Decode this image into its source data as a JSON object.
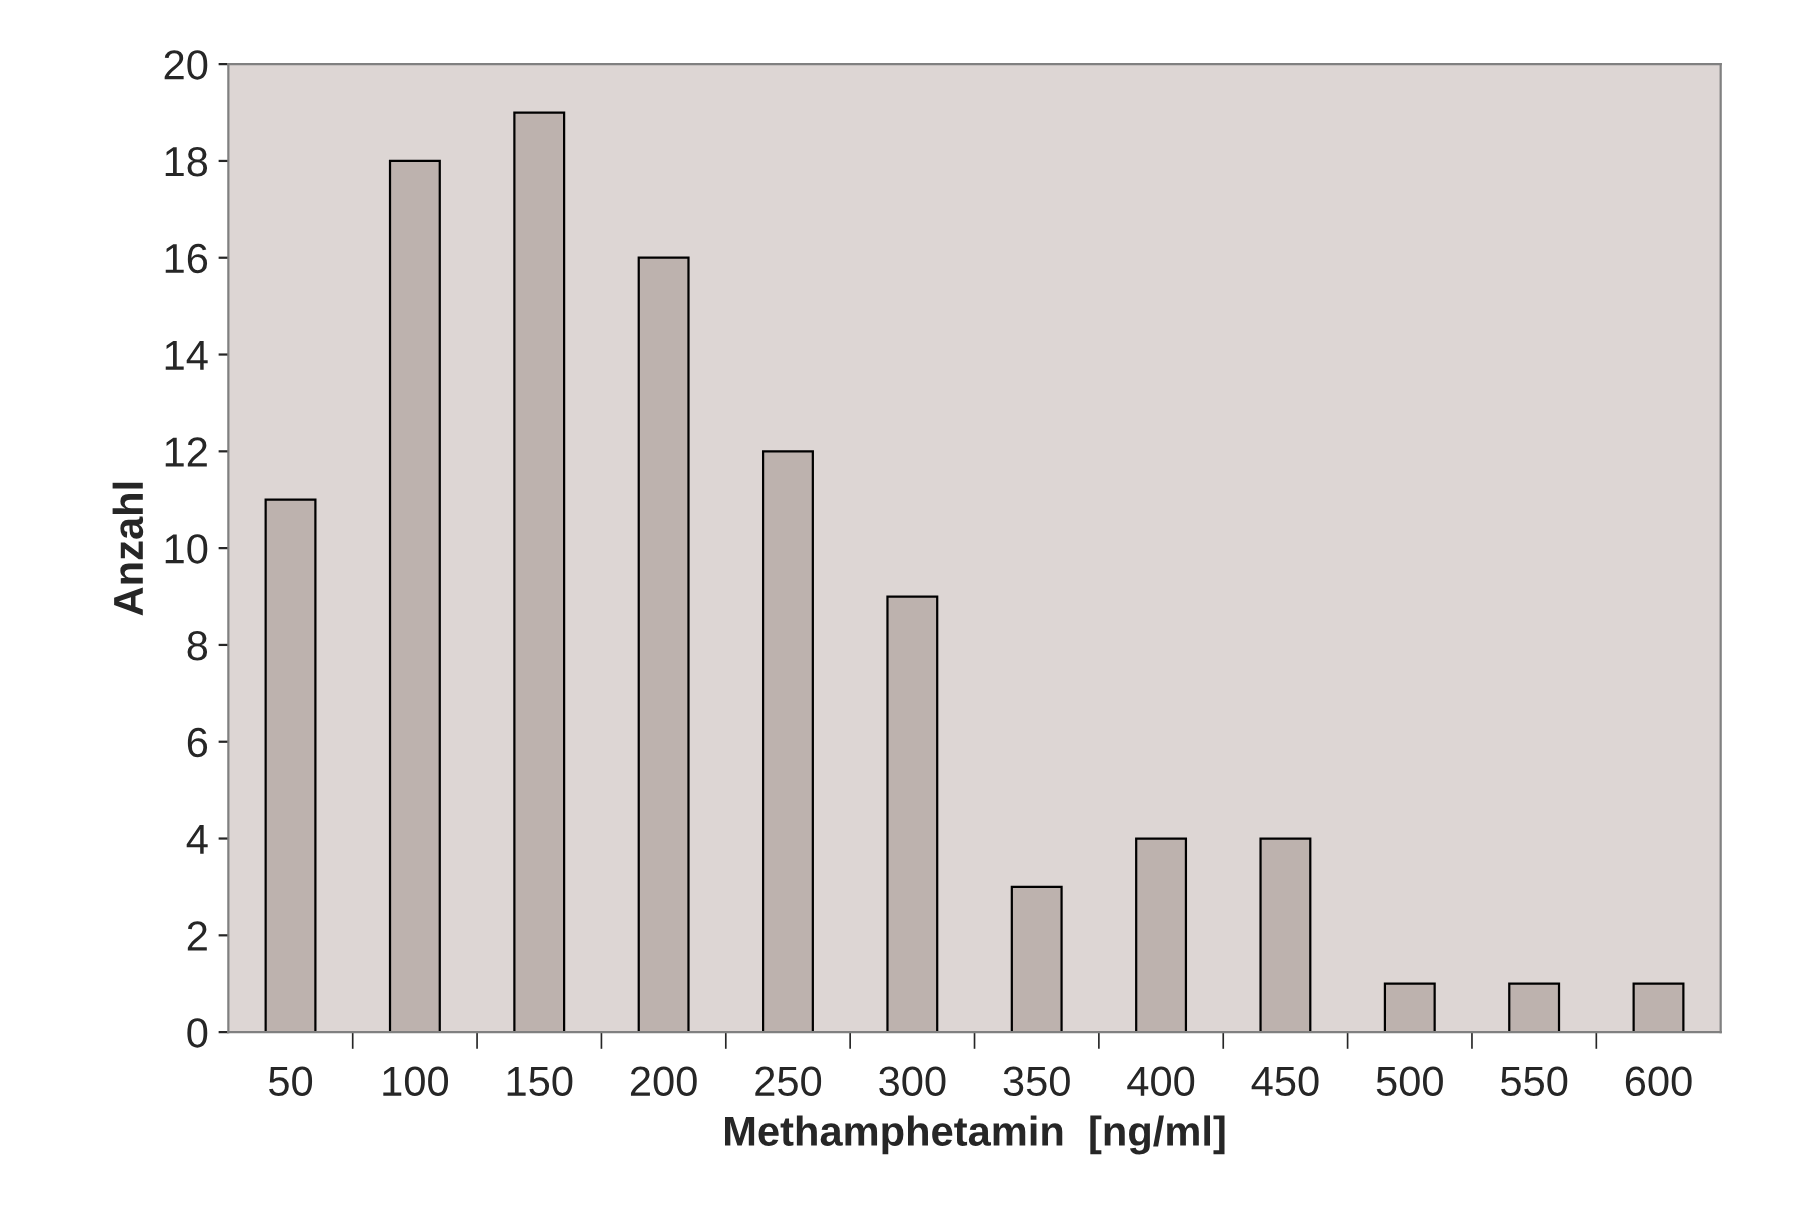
{
  "chart_data": {
    "type": "bar",
    "xlabel": "Methamphetamin  [ng/ml]",
    "ylabel": "Anzahl",
    "categories": [
      "50",
      "100",
      "150",
      "200",
      "250",
      "300",
      "350",
      "400",
      "450",
      "500",
      "550",
      "600"
    ],
    "values": [
      11,
      18,
      19,
      16,
      12,
      9,
      3,
      4,
      4,
      1,
      1,
      1
    ],
    "color": "#bdb2ae",
    "ylim": [
      0,
      20
    ],
    "yticks": [
      0,
      2,
      4,
      6,
      8,
      10,
      12,
      14,
      16,
      18,
      20
    ],
    "grid": false,
    "legend": false
  }
}
